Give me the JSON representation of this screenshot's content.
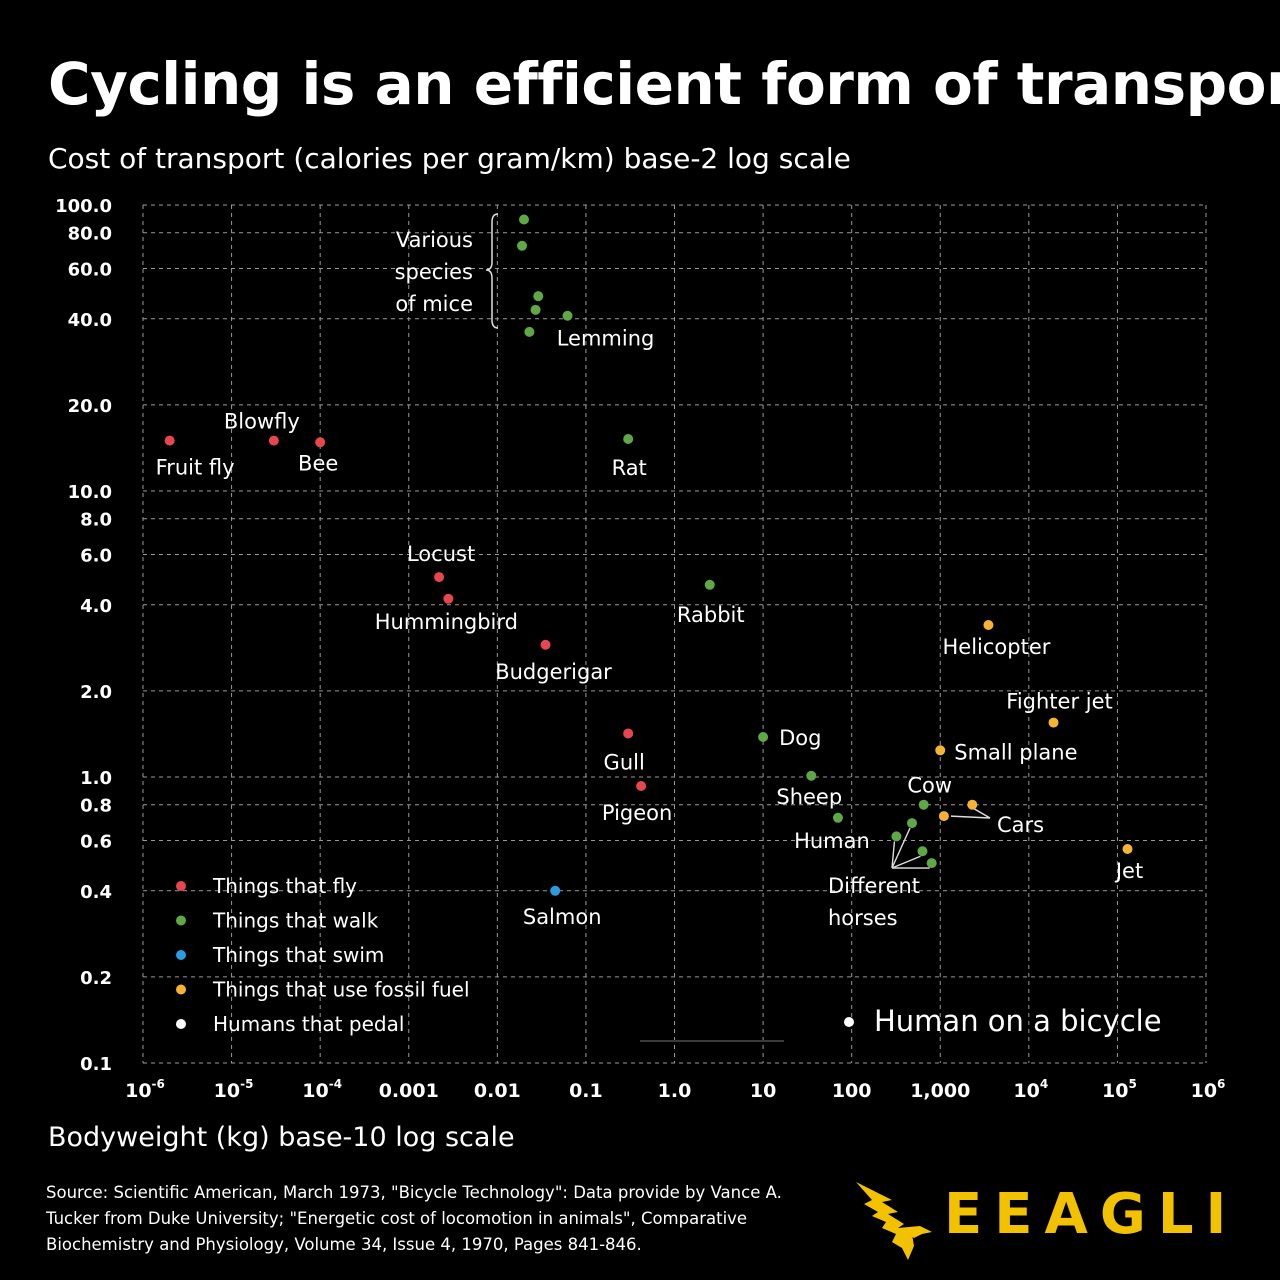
{
  "title": "Cycling is an efficient form of transport",
  "subtitle": "Cost of transport (calories per gram/km) base-2 log scale",
  "xlabel": "Bodyweight (kg) base-10 log scale",
  "source": "Source: Scientific American, March 1973, \"Bicycle Technology\": Data provide by Vance A. Tucker from Duke University; \"Energetic cost of locomotion in animals\", Comparative Biochemistry and Physiology, Volume 34, Issue 4, 1970, Pages 841-846.",
  "brand": "EEAGLI",
  "colors": {
    "fly": "#e8464f",
    "walk": "#5ea845",
    "swim": "#2a9de0",
    "fuel": "#f5b331",
    "pedal": "#ffffff",
    "grid": "#9a9a9a"
  },
  "chart_data": {
    "type": "scatter",
    "xscale": "log10",
    "yscale": "log2",
    "xlim": [
      1e-06,
      1000000
    ],
    "ylim": [
      0.1,
      100
    ],
    "grid": true,
    "legend_position": "bottom-left",
    "x_ticks": [
      {
        "value": 1e-06,
        "base": "10",
        "exp": "-6"
      },
      {
        "value": 1e-05,
        "base": "10",
        "exp": "-5"
      },
      {
        "value": 0.0001,
        "base": "10",
        "exp": "-4"
      },
      {
        "value": 0.001,
        "label": "0.001"
      },
      {
        "value": 0.01,
        "label": "0.01"
      },
      {
        "value": 0.1,
        "label": "0.1"
      },
      {
        "value": 1,
        "label": "1.0"
      },
      {
        "value": 10,
        "label": "10"
      },
      {
        "value": 100,
        "label": "100"
      },
      {
        "value": 1000,
        "label": "1,000"
      },
      {
        "value": 10000,
        "base": "10",
        "exp": "4"
      },
      {
        "value": 100000,
        "base": "10",
        "exp": "5"
      },
      {
        "value": 1000000,
        "base": "10",
        "exp": "6"
      }
    ],
    "y_ticks": [
      {
        "value": 0.1,
        "label": "0.1"
      },
      {
        "value": 0.2,
        "label": "0.2"
      },
      {
        "value": 0.4,
        "label": "0.4"
      },
      {
        "value": 0.6,
        "label": "0.6"
      },
      {
        "value": 0.8,
        "label": "0.8"
      },
      {
        "value": 1.0,
        "label": "1.0"
      },
      {
        "value": 2.0,
        "label": "2.0"
      },
      {
        "value": 4.0,
        "label": "4.0"
      },
      {
        "value": 6.0,
        "label": "6.0"
      },
      {
        "value": 8.0,
        "label": "8.0"
      },
      {
        "value": 10.0,
        "label": "10.0"
      },
      {
        "value": 20.0,
        "label": "20.0"
      },
      {
        "value": 40.0,
        "label": "40.0"
      },
      {
        "value": 60.0,
        "label": "60.0"
      },
      {
        "value": 80.0,
        "label": "80.0"
      },
      {
        "value": 100.0,
        "label": "100.0"
      }
    ],
    "series": [
      {
        "name": "Things that fly",
        "key": "fly",
        "points": [
          {
            "x": 2e-06,
            "y": 15,
            "label": "Fruit fly"
          },
          {
            "x": 3e-05,
            "y": 15,
            "label": "Blowfly"
          },
          {
            "x": 0.0001,
            "y": 14.8,
            "label": "Bee"
          },
          {
            "x": 0.0022,
            "y": 5.0,
            "label": "Locust"
          },
          {
            "x": 0.0028,
            "y": 4.2,
            "label": "Hummingbird"
          },
          {
            "x": 0.035,
            "y": 2.9,
            "label": "Budgerigar"
          },
          {
            "x": 0.3,
            "y": 1.42,
            "label": "Gull"
          },
          {
            "x": 0.42,
            "y": 0.93,
            "label": "Pigeon"
          }
        ]
      },
      {
        "name": "Things that walk",
        "key": "walk",
        "points": [
          {
            "x": 0.02,
            "y": 89,
            "label": ""
          },
          {
            "x": 0.019,
            "y": 72,
            "label": ""
          },
          {
            "x": 0.029,
            "y": 48,
            "label": ""
          },
          {
            "x": 0.027,
            "y": 43,
            "label": ""
          },
          {
            "x": 0.062,
            "y": 41,
            "label": "Lemming"
          },
          {
            "x": 0.023,
            "y": 36,
            "label": ""
          },
          {
            "x": 0.3,
            "y": 15.2,
            "label": "Rat"
          },
          {
            "x": 2.5,
            "y": 4.7,
            "label": "Rabbit"
          },
          {
            "x": 10,
            "y": 1.38,
            "label": "Dog"
          },
          {
            "x": 35,
            "y": 1.01,
            "label": "Sheep"
          },
          {
            "x": 70,
            "y": 0.72,
            "label": "Human"
          },
          {
            "x": 650,
            "y": 0.8,
            "label": "Cow"
          },
          {
            "x": 320,
            "y": 0.62,
            "label": ""
          },
          {
            "x": 480,
            "y": 0.69,
            "label": ""
          },
          {
            "x": 630,
            "y": 0.55,
            "label": ""
          },
          {
            "x": 800,
            "y": 0.5,
            "label": ""
          }
        ]
      },
      {
        "name": "Things that swim",
        "key": "swim",
        "points": [
          {
            "x": 0.045,
            "y": 0.4,
            "label": "Salmon"
          }
        ]
      },
      {
        "name": "Things that use fossil fuel",
        "key": "fuel",
        "points": [
          {
            "x": 3500,
            "y": 3.4,
            "label": "Helicopter"
          },
          {
            "x": 19000,
            "y": 1.55,
            "label": "Fighter jet"
          },
          {
            "x": 1000,
            "y": 1.24,
            "label": "Small plane"
          },
          {
            "x": 2300,
            "y": 0.8,
            "label": ""
          },
          {
            "x": 1100,
            "y": 0.73,
            "label": ""
          },
          {
            "x": 130000,
            "y": 0.56,
            "label": "Jet"
          }
        ]
      },
      {
        "name": "Humans that pedal",
        "key": "pedal",
        "points": [
          {
            "x": 70,
            "y": 0.15,
            "label": "Human on a bicycle"
          }
        ]
      }
    ],
    "annotations": [
      {
        "text_lines": [
          "Various",
          "species",
          "of mice"
        ]
      },
      {
        "text": "Cars"
      },
      {
        "text_lines": [
          "Different",
          "horses"
        ]
      }
    ]
  }
}
